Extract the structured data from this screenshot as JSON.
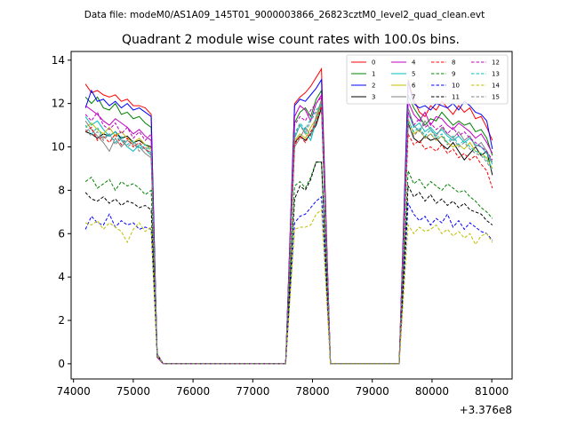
{
  "figure": {
    "suptitle": "Data file: modeM0/AS1A09_145T01_9000003866_26823cztM0_level2_quad_clean.evt"
  },
  "chart_data": {
    "type": "line",
    "title": "Quadrant 2 module wise count rates with 100.0s bins.",
    "xlabel": "",
    "ylabel": "",
    "x_offset_label": "+3.376e8",
    "xlim": [
      73960,
      81340
    ],
    "ylim": [
      -0.7,
      14.4
    ],
    "x_ticks": [
      74000,
      75000,
      76000,
      77000,
      78000,
      79000,
      80000,
      81000
    ],
    "y_ticks": [
      0,
      2,
      4,
      6,
      8,
      10,
      12,
      14
    ],
    "grid": false,
    "legend_position": "top-right",
    "legend_columns": 4,
    "x": [
      74200,
      74300,
      74400,
      74500,
      74600,
      74700,
      74800,
      74900,
      75000,
      75100,
      75200,
      75300,
      75400,
      75500,
      75600,
      75700,
      75800,
      75900,
      76000,
      76100,
      76200,
      76300,
      76400,
      76500,
      76600,
      76700,
      76800,
      76900,
      77000,
      77100,
      77200,
      77300,
      77400,
      77500,
      77600,
      77700,
      77800,
      77900,
      78000,
      78100,
      78200,
      78300,
      78400,
      78500,
      78600,
      78700,
      78800,
      78900,
      79000,
      79100,
      79200,
      79300,
      79400,
      79500,
      79600,
      79700,
      79800,
      79900,
      80000,
      80100,
      80200,
      80300,
      80400,
      80500,
      80600,
      80700,
      80800,
      80900,
      81000
    ],
    "series": [
      {
        "name": "0",
        "color": "#ff0000",
        "dash": false,
        "active": [
          12.9,
          12.5,
          12.6,
          12.4,
          12.3,
          12.4,
          12.1,
          12.2,
          11.9,
          11.9,
          11.8,
          11.5
        ],
        "b2": [
          12.0,
          12.3,
          12.5,
          12.8,
          13.2,
          13.6
        ],
        "b3": [
          13.1,
          12.2,
          11.6,
          11.4,
          11.9,
          11.7,
          12.1,
          11.8,
          11.5,
          11.9,
          11.6,
          11.8,
          11.3,
          11.4,
          10.9,
          10.3
        ]
      },
      {
        "name": "1",
        "color": "#008000",
        "dash": false,
        "active": [
          12.3,
          12.0,
          12.3,
          11.8,
          11.7,
          12.0,
          11.5,
          11.6,
          11.3,
          11.4,
          11.1,
          10.9
        ],
        "b2": [
          11.1,
          11.6,
          11.8,
          11.4,
          12.2,
          12.6
        ],
        "b3": [
          12.4,
          11.8,
          11.4,
          11.0,
          11.3,
          11.2,
          11.6,
          11.3,
          11.0,
          11.2,
          11.0,
          11.1,
          10.7,
          10.8,
          10.4,
          9.6
        ]
      },
      {
        "name": "2",
        "color": "#0000ff",
        "dash": false,
        "active": [
          11.8,
          12.6,
          12.1,
          12.2,
          11.9,
          12.1,
          11.8,
          12.0,
          11.7,
          11.8,
          11.6,
          11.4
        ],
        "b2": [
          11.9,
          12.2,
          12.1,
          12.4,
          12.7,
          13.1
        ],
        "b3": [
          13.0,
          12.0,
          11.8,
          11.9,
          11.7,
          12.0,
          11.9,
          11.8,
          12.0,
          11.7,
          12.1,
          11.9,
          11.6,
          11.5,
          11.2,
          9.9
        ]
      },
      {
        "name": "3",
        "color": "#000000",
        "dash": false,
        "active": [
          10.7,
          10.6,
          10.4,
          10.6,
          10.5,
          10.7,
          10.4,
          10.5,
          10.2,
          10.3,
          10.1,
          10.0
        ],
        "b2": [
          10.2,
          10.5,
          10.3,
          10.6,
          11.0,
          11.8
        ],
        "b3": [
          11.1,
          10.4,
          10.2,
          10.5,
          10.3,
          10.4,
          10.1,
          9.9,
          10.2,
          9.8,
          9.4,
          9.7,
          10.0,
          9.6,
          9.8,
          8.7
        ]
      },
      {
        "name": "4",
        "color": "#bf00bf",
        "dash": false,
        "active": [
          11.9,
          11.7,
          11.5,
          11.2,
          11.0,
          11.3,
          11.1,
          10.9,
          10.6,
          10.8,
          10.5,
          10.3
        ],
        "b2": [
          11.4,
          11.9,
          11.7,
          11.2,
          12.0,
          12.4
        ],
        "b3": [
          12.1,
          11.5,
          11.2,
          11.6,
          11.0,
          11.4,
          11.3,
          11.0,
          10.8,
          11.1,
          10.9,
          10.7,
          10.4,
          10.6,
          10.2,
          9.7
        ]
      },
      {
        "name": "5",
        "color": "#00bfbf",
        "dash": false,
        "active": [
          11.4,
          11.0,
          11.2,
          10.8,
          10.5,
          10.7,
          10.3,
          10.0,
          9.8,
          10.1,
          9.9,
          9.6
        ],
        "b2": [
          10.4,
          11.0,
          10.7,
          10.3,
          11.2,
          12.0
        ],
        "b3": [
          11.6,
          10.9,
          11.1,
          10.7,
          10.9,
          10.6,
          10.8,
          10.5,
          10.3,
          10.5,
          10.2,
          10.4,
          10.1,
          10.0,
          9.7,
          9.2
        ]
      },
      {
        "name": "6",
        "color": "#bfbf00",
        "dash": false,
        "active": [
          10.9,
          11.1,
          10.8,
          10.6,
          10.9,
          10.5,
          10.7,
          10.4,
          10.2,
          10.4,
          10.1,
          9.9
        ],
        "b2": [
          10.3,
          10.6,
          10.4,
          10.9,
          11.3,
          12.1
        ],
        "b3": [
          11.3,
          10.6,
          10.8,
          10.4,
          10.6,
          10.3,
          10.5,
          10.2,
          10.0,
          10.1,
          9.9,
          10.2,
          9.8,
          9.7,
          9.5,
          9.0
        ]
      },
      {
        "name": "7",
        "color": "#808080",
        "dash": false,
        "active": [
          11.2,
          10.8,
          10.5,
          10.2,
          9.8,
          10.4,
          10.0,
          10.3,
          10.1,
          10.0,
          9.7,
          9.5
        ],
        "b2": [
          10.0,
          10.4,
          10.9,
          10.5,
          11.4,
          12.2
        ],
        "b3": [
          11.8,
          11.0,
          10.7,
          11.2,
          10.8,
          10.5,
          10.9,
          10.6,
          10.4,
          10.7,
          10.3,
          10.5,
          10.0,
          10.2,
          9.8,
          9.3
        ]
      },
      {
        "name": "8",
        "color": "#ff0000",
        "dash": true,
        "active": [
          10.7,
          10.9,
          10.3,
          10.5,
          10.2,
          10.6,
          10.1,
          10.4,
          10.0,
          10.2,
          9.9,
          9.7
        ],
        "b2": [
          10.1,
          10.5,
          10.2,
          10.7,
          11.1,
          11.9
        ],
        "b3": [
          10.6,
          10.1,
          10.3,
          9.9,
          10.0,
          9.8,
          10.1,
          9.7,
          9.9,
          9.5,
          9.7,
          9.4,
          9.6,
          9.2,
          8.9,
          8.1
        ]
      },
      {
        "name": "9",
        "color": "#008000",
        "dash": true,
        "active": [
          8.4,
          8.6,
          8.1,
          8.3,
          8.5,
          8.0,
          8.4,
          8.2,
          8.3,
          8.1,
          7.8,
          8.0
        ],
        "b2": [
          8.2,
          8.4,
          8.1,
          8.6,
          9.3,
          9.3
        ],
        "b3": [
          8.9,
          8.3,
          8.5,
          8.1,
          8.4,
          8.2,
          8.0,
          8.3,
          8.1,
          7.9,
          8.0,
          7.7,
          7.5,
          7.2,
          7.0,
          6.7
        ]
      },
      {
        "name": "10",
        "color": "#0000ff",
        "dash": true,
        "active": [
          6.2,
          6.8,
          6.5,
          6.4,
          6.9,
          6.3,
          6.6,
          6.4,
          6.5,
          6.2,
          6.3,
          6.2
        ],
        "b2": [
          6.5,
          6.8,
          6.9,
          7.2,
          7.5,
          7.7
        ],
        "b3": [
          7.4,
          6.9,
          6.6,
          6.8,
          6.4,
          6.7,
          6.5,
          6.9,
          6.3,
          6.6,
          6.2,
          6.5,
          6.3,
          6.1,
          6.0,
          5.7
        ]
      },
      {
        "name": "11",
        "color": "#000000",
        "dash": true,
        "active": [
          7.9,
          7.6,
          7.5,
          7.7,
          7.4,
          7.6,
          7.3,
          7.5,
          7.4,
          7.2,
          7.3,
          7.1
        ],
        "b2": [
          7.6,
          8.2,
          8.0,
          8.5,
          9.3,
          9.3
        ],
        "b3": [
          8.2,
          7.7,
          7.9,
          7.5,
          7.8,
          7.4,
          7.6,
          7.3,
          7.5,
          7.2,
          7.4,
          7.1,
          7.0,
          6.9,
          6.6,
          6.4
        ]
      },
      {
        "name": "12",
        "color": "#bf00bf",
        "dash": true,
        "active": [
          11.5,
          11.2,
          11.6,
          11.0,
          10.8,
          11.1,
          10.6,
          10.9,
          10.4,
          10.7,
          10.3,
          10.6
        ],
        "b2": [
          11.0,
          11.4,
          11.2,
          11.7,
          12.0,
          12.3
        ],
        "b3": [
          11.6,
          11.0,
          11.3,
          10.9,
          11.1,
          10.8,
          11.0,
          10.6,
          10.9,
          10.5,
          10.7,
          10.4,
          10.2,
          10.0,
          9.8,
          9.4
        ]
      },
      {
        "name": "13",
        "color": "#00bfbf",
        "dash": true,
        "active": [
          11.0,
          10.6,
          10.9,
          10.4,
          10.6,
          10.2,
          10.5,
          10.1,
          10.3,
          9.9,
          10.1,
          9.8
        ],
        "b2": [
          10.6,
          11.1,
          10.8,
          11.3,
          11.7,
          12.0
        ],
        "b3": [
          11.2,
          10.7,
          10.9,
          10.5,
          10.8,
          10.4,
          10.6,
          10.2,
          10.5,
          10.1,
          10.3,
          10.0,
          9.8,
          9.7,
          9.4,
          9.0
        ]
      },
      {
        "name": "14",
        "color": "#bfbf00",
        "dash": true,
        "active": [
          6.5,
          6.4,
          6.6,
          6.2,
          6.5,
          6.3,
          6.1,
          5.6,
          6.2,
          6.5,
          6.1,
          6.3
        ],
        "b2": [
          6.2,
          6.3,
          6.3,
          6.4,
          6.9,
          7.1
        ],
        "b3": [
          6.4,
          6.0,
          6.3,
          6.1,
          6.2,
          6.4,
          6.0,
          6.2,
          5.9,
          6.1,
          5.8,
          6.0,
          5.5,
          5.9,
          6.0,
          5.6
        ]
      },
      {
        "name": "15",
        "color": "#808080",
        "dash": true,
        "active": [
          10.8,
          10.5,
          10.7,
          10.3,
          10.6,
          10.1,
          10.4,
          10.0,
          10.2,
          9.8,
          10.0,
          9.7
        ],
        "b2": [
          10.5,
          11.0,
          10.6,
          11.2,
          11.6,
          11.9
        ],
        "b3": [
          11.0,
          10.5,
          10.8,
          10.4,
          10.6,
          10.3,
          10.5,
          10.1,
          10.4,
          10.0,
          10.2,
          9.9,
          9.7,
          9.6,
          9.3,
          8.9
        ]
      }
    ]
  }
}
